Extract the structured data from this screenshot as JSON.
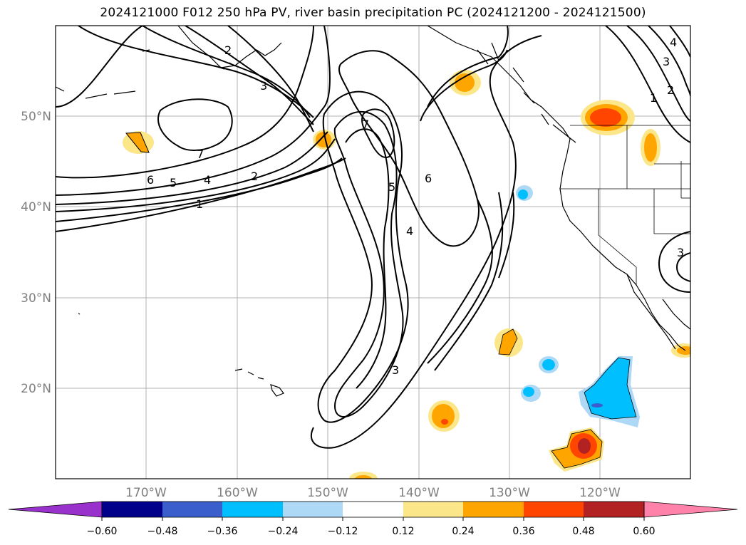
{
  "title": "2024121000 F012 250 hPa PV, river basin precipitation PC (2024121200 - 2024121500)",
  "map": {
    "lat_labels": [
      "50°N",
      "40°N",
      "30°N",
      "20°N"
    ],
    "lon_labels": [
      "170°W",
      "160°W",
      "150°W",
      "140°W",
      "130°W",
      "120°W"
    ],
    "contour_labels": [
      "2",
      "3",
      "7",
      "6",
      "5",
      "4",
      "2",
      "1",
      "7",
      "5",
      "6",
      "4",
      "3",
      "1",
      "2",
      "3",
      "4",
      "3"
    ]
  },
  "colorbar": {
    "ticks": [
      "−0.60",
      "−0.48",
      "−0.36",
      "−0.24",
      "−0.12",
      "0.12",
      "0.24",
      "0.36",
      "0.48",
      "0.60"
    ],
    "colors": [
      "#9932cc",
      "#00008b",
      "#3a5fcd",
      "#00bfff",
      "#add8f6",
      "#ffffff",
      "#fce68a",
      "#ffa500",
      "#ff4500",
      "#b22222",
      "#ff82ab"
    ]
  },
  "colors": {
    "pos_light": "#fce68a",
    "pos_mid": "#ffa500",
    "pos_strong": "#ff4500",
    "pos_max": "#b22222",
    "neg_light": "#add8f6",
    "neg_mid": "#00bfff",
    "neg_strong": "#3a5fcd"
  }
}
